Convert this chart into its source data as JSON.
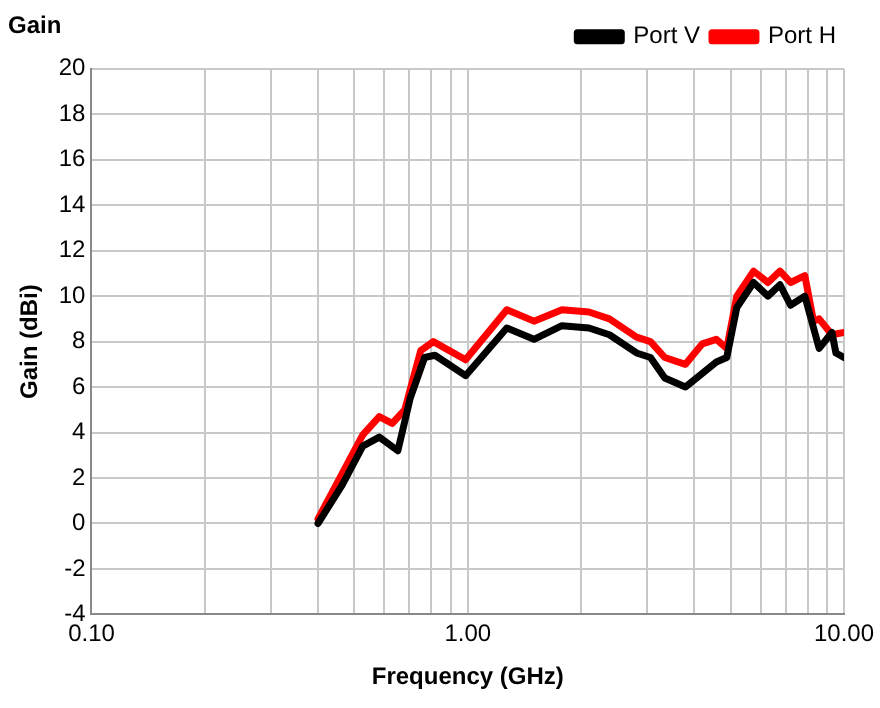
{
  "chart_data": {
    "type": "line",
    "title": "Gain",
    "xlabel": "Frequency (GHz)",
    "ylabel": "Gain (dBi)",
    "log": "x",
    "xlim": [
      0.1,
      10
    ],
    "xticks": [
      {
        "value": 0.1,
        "label": "0.10"
      },
      {
        "value": 0.2,
        "label": null
      },
      {
        "value": 0.3,
        "label": null
      },
      {
        "value": 0.4,
        "label": null
      },
      {
        "value": 0.5,
        "label": null
      },
      {
        "value": 0.6,
        "label": null
      },
      {
        "value": 0.7,
        "label": null
      },
      {
        "value": 0.8,
        "label": null
      },
      {
        "value": 0.9,
        "label": null
      },
      {
        "value": 1,
        "label": "1.00"
      },
      {
        "value": 2,
        "label": null
      },
      {
        "value": 3,
        "label": null
      },
      {
        "value": 4,
        "label": null
      },
      {
        "value": 5,
        "label": null
      },
      {
        "value": 6,
        "label": null
      },
      {
        "value": 7,
        "label": null
      },
      {
        "value": 8,
        "label": null
      },
      {
        "value": 9,
        "label": null
      },
      {
        "value": 10,
        "label": "10.00"
      }
    ],
    "ylim": [
      -4,
      20
    ],
    "yticks": [
      -4,
      -2,
      0,
      2,
      4,
      6,
      8,
      10,
      12,
      14,
      16,
      18,
      20
    ],
    "grid": true,
    "legend": "top right",
    "marker": "none",
    "line_style": "solid",
    "series": [
      {
        "name": "Port V",
        "color": "#000000",
        "x": [
          0.4,
          0.464,
          0.526,
          0.582,
          0.652,
          0.703,
          0.768,
          0.818,
          0.987,
          1.27,
          1.5,
          1.78,
          2.1,
          2.38,
          2.81,
          3.06,
          3.34,
          3.79,
          4.58,
          4.88,
          5.19,
          5.75,
          6.28,
          6.76,
          7.21,
          7.87,
          8.59,
          9.29,
          9.52,
          10
        ],
        "values": [
          0,
          1.7,
          3.4,
          3.8,
          3.2,
          5.5,
          7.3,
          7.4,
          6.5,
          8.6,
          8.1,
          8.7,
          8.6,
          8.3,
          7.5,
          7.3,
          6.4,
          6,
          7.1,
          7.3,
          9.5,
          10.6,
          10,
          10.5,
          9.6,
          10,
          7.7,
          8.4,
          7.5,
          7.3
        ]
      },
      {
        "name": "Port H",
        "color": "#ff0000",
        "x": [
          0.4,
          0.464,
          0.526,
          0.582,
          0.63,
          0.68,
          0.75,
          0.81,
          0.987,
          1.27,
          1.5,
          1.78,
          2.1,
          2.38,
          2.81,
          3.06,
          3.34,
          3.79,
          4.2,
          4.58,
          4.88,
          5.19,
          5.75,
          6.28,
          6.76,
          7.21,
          7.87,
          8.3,
          8.59,
          9.29,
          10
        ],
        "values": [
          0.2,
          2.2,
          3.9,
          4.7,
          4.4,
          5,
          7.6,
          8,
          7.2,
          9.4,
          8.9,
          9.4,
          9.3,
          9,
          8.2,
          8,
          7.3,
          7,
          7.9,
          8.1,
          7.7,
          10,
          11.1,
          10.6,
          11.1,
          10.6,
          10.9,
          8.9,
          9,
          8.3,
          8.4
        ]
      }
    ]
  }
}
